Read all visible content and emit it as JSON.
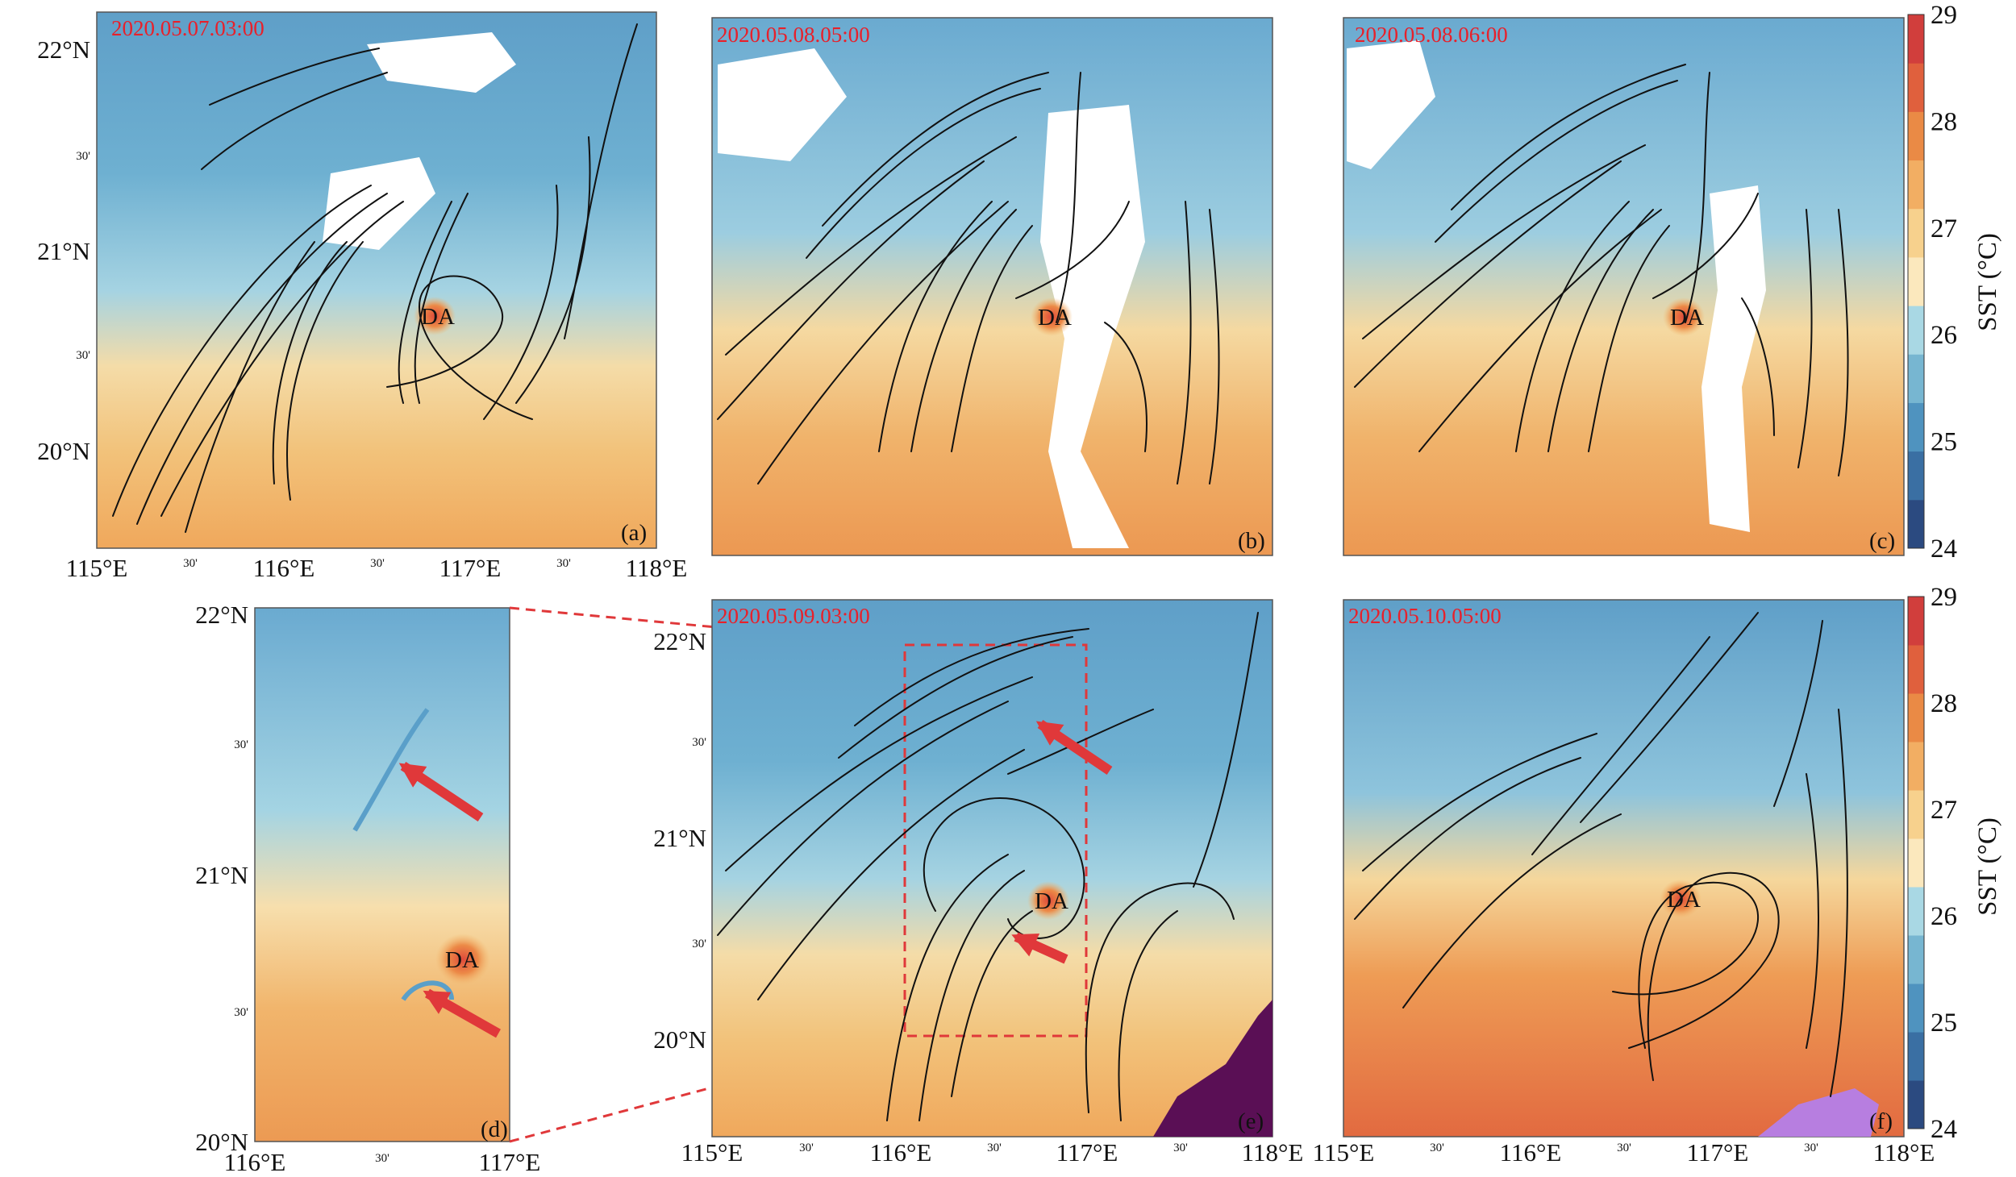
{
  "panels": [
    {
      "id": "a",
      "timestamp": "2020.05.07.03:00",
      "label": "(a)",
      "eddy": "DA"
    },
    {
      "id": "b",
      "timestamp": "2020.05.08.05:00",
      "label": "(b)",
      "eddy": "DA"
    },
    {
      "id": "c",
      "timestamp": "2020.05.08.06:00",
      "label": "(c)",
      "eddy": "DA"
    },
    {
      "id": "d",
      "timestamp": "",
      "label": "(d)",
      "eddy": "DA"
    },
    {
      "id": "e",
      "timestamp": "2020.05.09.03:00",
      "label": "(e)",
      "eddy": "DA"
    },
    {
      "id": "f",
      "timestamp": "2020.05.10.05:00",
      "label": "(f)",
      "eddy": "DA"
    }
  ],
  "axes": {
    "lon_major": [
      "115°E",
      "116°E",
      "117°E",
      "118°E"
    ],
    "lat_major": [
      "20°N",
      "21°N",
      "22°N"
    ],
    "minor": "30'",
    "zoom_lon": [
      "116°E",
      "117°E"
    ],
    "zoom_lat": [
      "20°N",
      "21°N",
      "22°N"
    ]
  },
  "colorbar": {
    "title": "SST (°C)",
    "ticks": [
      "24",
      "25",
      "26",
      "27",
      "28",
      "29"
    ],
    "colors": [
      "#2b4a80",
      "#3a6fa3",
      "#4f93bf",
      "#77b6d1",
      "#a9d8e4",
      "#fbe8bd",
      "#f7d18d",
      "#f2ae63",
      "#ea8a45",
      "#e0603d",
      "#d13e3c"
    ]
  }
}
